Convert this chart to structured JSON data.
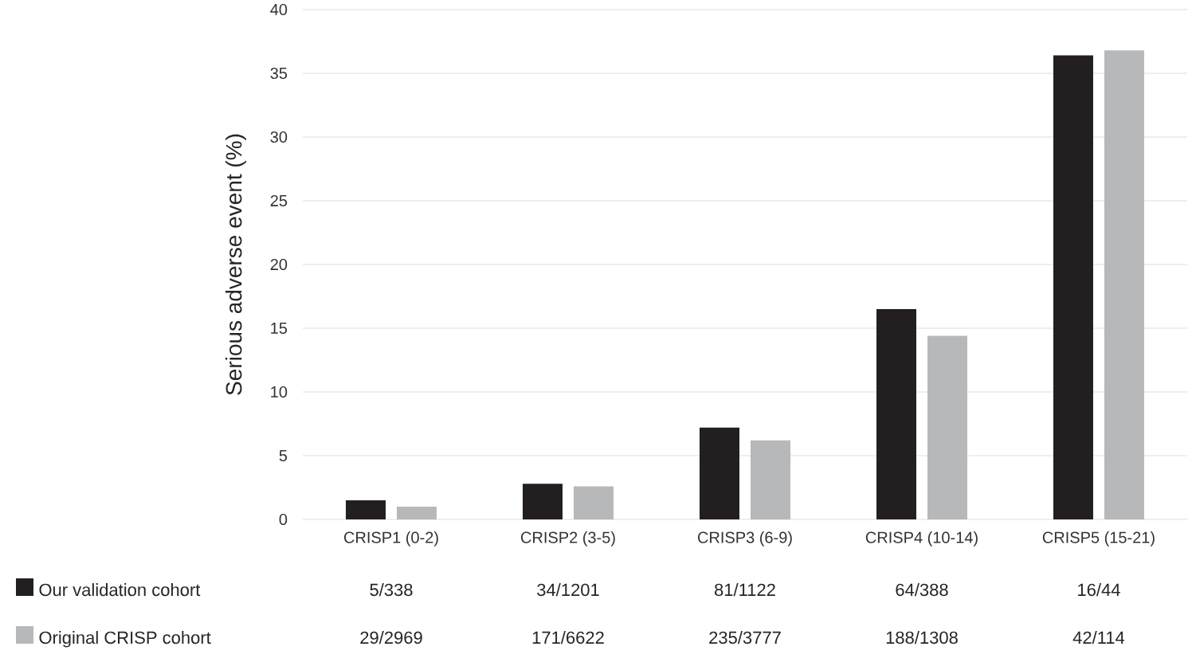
{
  "chart_data": {
    "type": "bar",
    "ylabel": "Serious adverse event (%)",
    "categories": [
      "CRISP1 (0-2)",
      "CRISP2 (3-5)",
      "CRISP3 (6-9)",
      "CRISP4 (10-14)",
      "CRISP5 (15-21)"
    ],
    "series": [
      {
        "name": "Our validation cohort",
        "color": "#231f20",
        "values": [
          1.5,
          2.8,
          7.2,
          16.5,
          36.4
        ],
        "value_labels": [
          "5/338",
          "34/1201",
          "81/1122",
          "64/388",
          "16/44"
        ]
      },
      {
        "name": "Original CRISP cohort",
        "color": "#b7b8ba",
        "values": [
          1.0,
          2.6,
          6.2,
          14.4,
          36.8
        ],
        "value_labels": [
          "29/2969",
          "171/6622",
          "235/3777",
          "188/1308",
          "42/114"
        ]
      }
    ],
    "ylim": [
      0,
      40
    ],
    "yticks": [
      0,
      5,
      10,
      15,
      20,
      25,
      30,
      35,
      40
    ],
    "grid": "y",
    "legend": "bottom left"
  }
}
